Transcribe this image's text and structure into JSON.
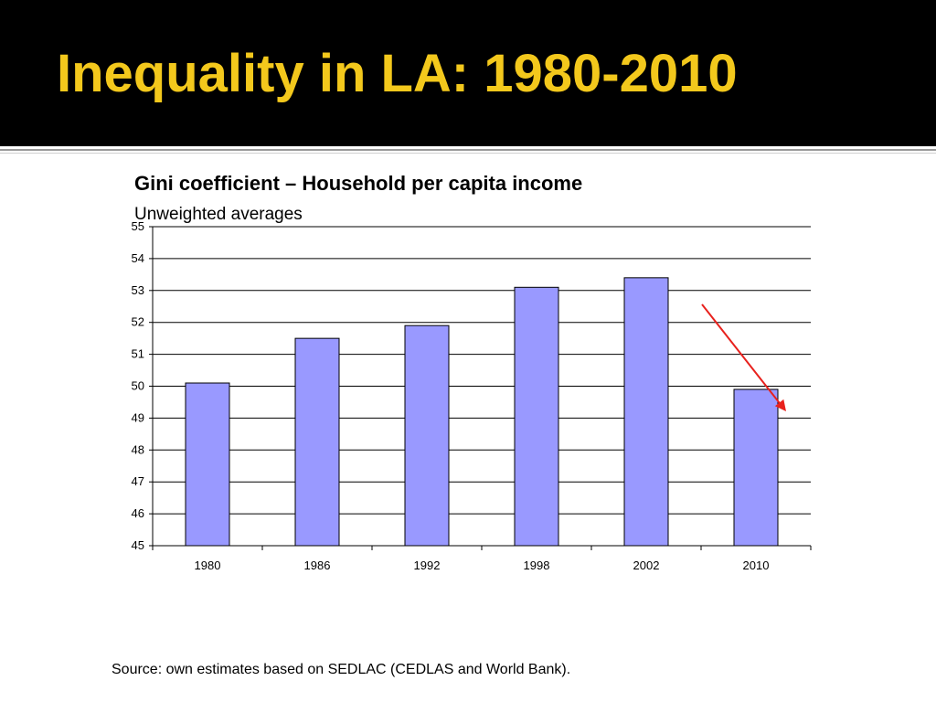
{
  "slide": {
    "title": "Inequality in LA: 1980-2010",
    "title_color": "#f3c81c",
    "source": "Source: own estimates based on SEDLAC (CEDLAS and World Bank)."
  },
  "chart_data": {
    "type": "bar",
    "title": "Gini coefficient – Household per capita income",
    "subtitle": "Unweighted averages",
    "categories": [
      "1980",
      "1986",
      "1992",
      "1998",
      "2002",
      "2010"
    ],
    "values": [
      50.1,
      51.5,
      51.9,
      53.1,
      53.4,
      49.9
    ],
    "ylim": [
      45,
      55
    ],
    "yticks": [
      45,
      46,
      47,
      48,
      49,
      50,
      51,
      52,
      53,
      54,
      55
    ],
    "grid": true,
    "bar_color": "#9999ff",
    "annotation": {
      "type": "arrow",
      "color": "#e8211d",
      "meaning": "decline toward 2010"
    }
  }
}
